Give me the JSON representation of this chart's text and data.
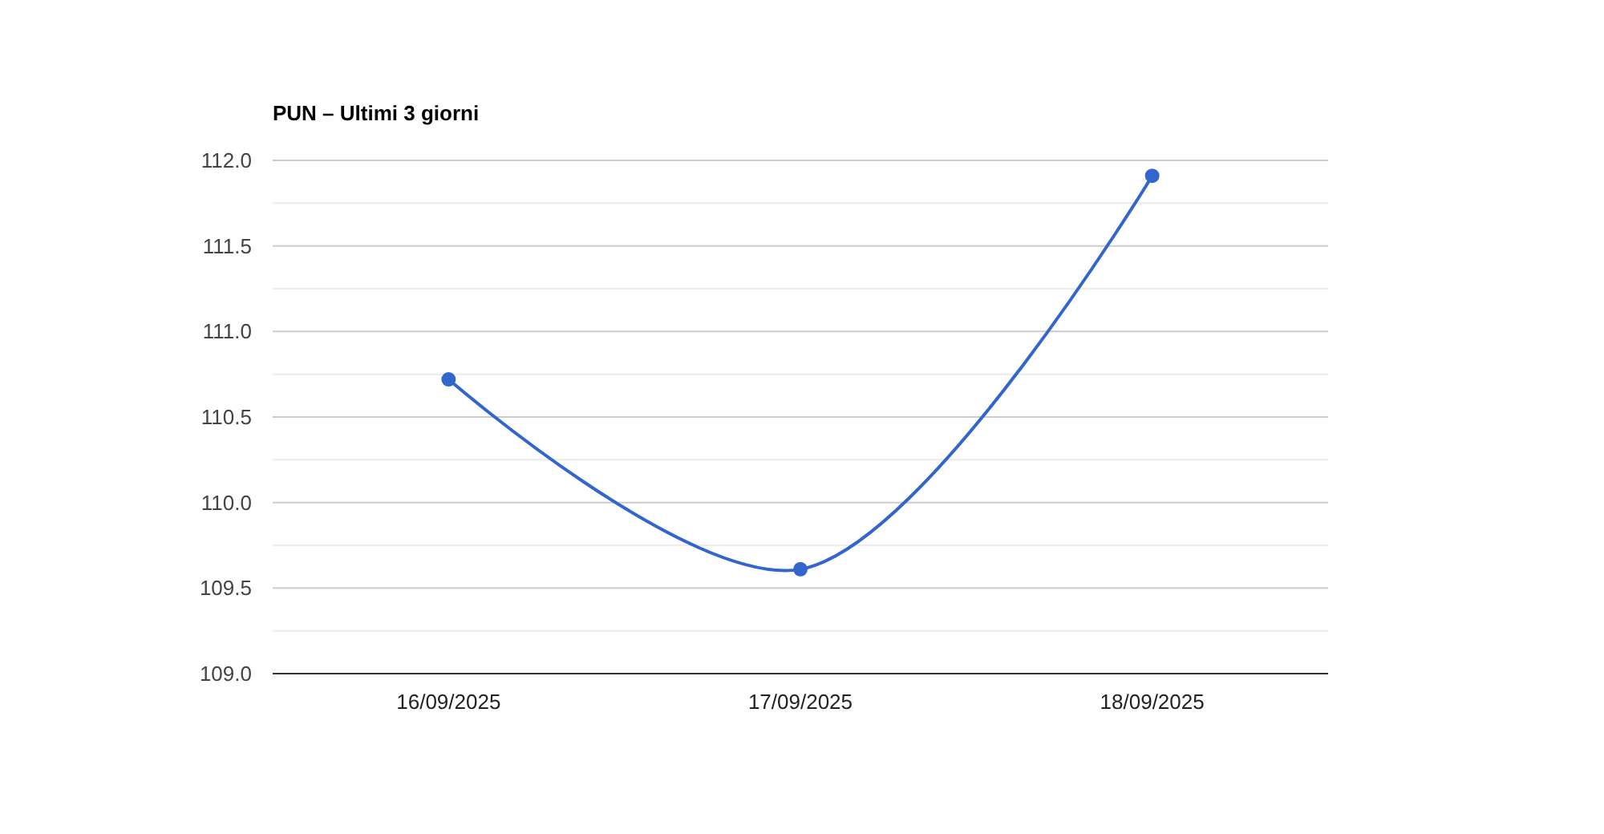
{
  "chart_data": {
    "type": "line",
    "title": "PUN – Ultimi 3 giorni",
    "categories": [
      "16/09/2025",
      "17/09/2025",
      "18/09/2025"
    ],
    "series": [
      {
        "color": "#3366cc",
        "values": [
          110.72,
          109.61,
          111.91
        ]
      }
    ],
    "ylim": [
      109,
      112
    ],
    "yticks": [
      {
        "value": 109,
        "label": "109.0"
      },
      {
        "value": 109.25,
        "label": null
      },
      {
        "value": 109.5,
        "label": "109.5"
      },
      {
        "value": 109.75,
        "label": null
      },
      {
        "value": 110,
        "label": "110.0"
      },
      {
        "value": 110.25,
        "label": null
      },
      {
        "value": 110.5,
        "label": "110.5"
      },
      {
        "value": 110.75,
        "label": null
      },
      {
        "value": 111,
        "label": "111.0"
      },
      {
        "value": 111.25,
        "label": null
      },
      {
        "value": 111.5,
        "label": "111.5"
      },
      {
        "value": 111.75,
        "label": null
      },
      {
        "value": 112,
        "label": "112.0"
      }
    ],
    "grid": true,
    "marker": "circle",
    "line_style": "solid"
  }
}
